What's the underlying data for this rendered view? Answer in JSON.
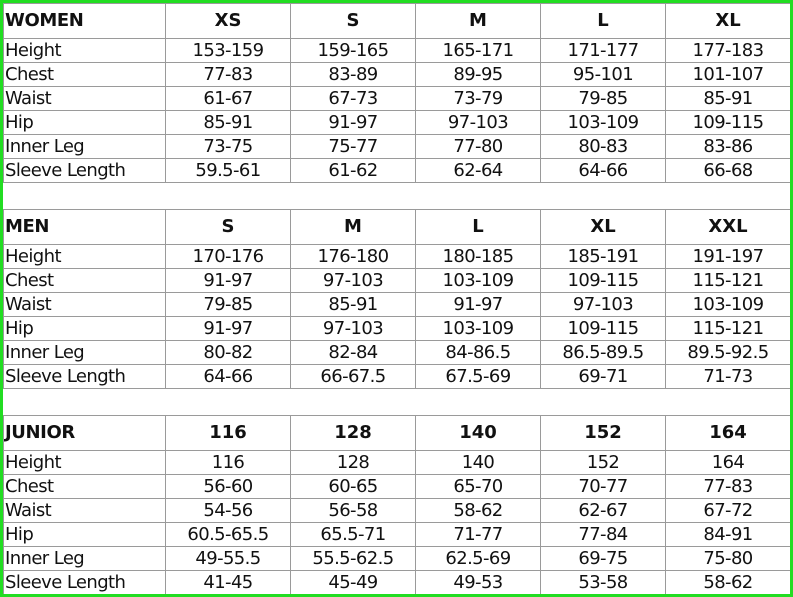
{
  "sections": [
    {
      "title": "WOMEN",
      "sizes": [
        "XS",
        "S",
        "M",
        "L",
        "XL"
      ],
      "rows": [
        {
          "label": "Height",
          "values": [
            "153-159",
            "159-165",
            "165-171",
            "171-177",
            "177-183"
          ]
        },
        {
          "label": "Chest",
          "values": [
            "77-83",
            "83-89",
            "89-95",
            "95-101",
            "101-107"
          ]
        },
        {
          "label": "Waist",
          "values": [
            "61-67",
            "67-73",
            "73-79",
            "79-85",
            "85-91"
          ]
        },
        {
          "label": "Hip",
          "values": [
            "85-91",
            "91-97",
            "97-103",
            "103-109",
            "109-115"
          ]
        },
        {
          "label": "Inner Leg",
          "values": [
            "73-75",
            "75-77",
            "77-80",
            "80-83",
            "83-86"
          ]
        },
        {
          "label": "Sleeve Length",
          "values": [
            "59.5-61",
            "61-62",
            "62-64",
            "64-66",
            "66-68"
          ]
        }
      ]
    },
    {
      "title": "MEN",
      "sizes": [
        "S",
        "M",
        "L",
        "XL",
        "XXL"
      ],
      "rows": [
        {
          "label": "Height",
          "values": [
            "170-176",
            "176-180",
            "180-185",
            "185-191",
            "191-197"
          ]
        },
        {
          "label": "Chest",
          "values": [
            "91-97",
            "97-103",
            "103-109",
            "109-115",
            "115-121"
          ]
        },
        {
          "label": "Waist",
          "values": [
            "79-85",
            "85-91",
            "91-97",
            "97-103",
            "103-109"
          ]
        },
        {
          "label": "Hip",
          "values": [
            "91-97",
            "97-103",
            "103-109",
            "109-115",
            "115-121"
          ]
        },
        {
          "label": "Inner Leg",
          "values": [
            "80-82",
            "82-84",
            "84-86.5",
            "86.5-89.5",
            "89.5-92.5"
          ]
        },
        {
          "label": "Sleeve Length",
          "values": [
            "64-66",
            "66-67.5",
            "67.5-69",
            "69-71",
            "71-73"
          ]
        }
      ]
    },
    {
      "title": "JUNIOR",
      "sizes": [
        "116",
        "128",
        "140",
        "152",
        "164"
      ],
      "rows": [
        {
          "label": "Height",
          "values": [
            "116",
            "128",
            "140",
            "152",
            "164"
          ]
        },
        {
          "label": "Chest",
          "values": [
            "56-60",
            "60-65",
            "65-70",
            "70-77",
            "77-83"
          ]
        },
        {
          "label": "Waist",
          "values": [
            "54-56",
            "56-58",
            "58-62",
            "62-67",
            "67-72"
          ]
        },
        {
          "label": "Hip",
          "values": [
            "60.5-65.5",
            "65.5-71",
            "71-77",
            "77-84",
            "84-91"
          ]
        },
        {
          "label": "Inner Leg",
          "values": [
            "49-55.5",
            "55.5-62.5",
            "62.5-69",
            "69-75",
            "75-80"
          ]
        },
        {
          "label": "Sleeve Length",
          "values": [
            "41-45",
            "45-49",
            "49-53",
            "53-58",
            "58-62"
          ]
        }
      ]
    }
  ],
  "colors": {
    "frame_border": "#22dd22",
    "grid_line": "#9a9a9a",
    "text": "#111111",
    "background": "#ffffff"
  }
}
